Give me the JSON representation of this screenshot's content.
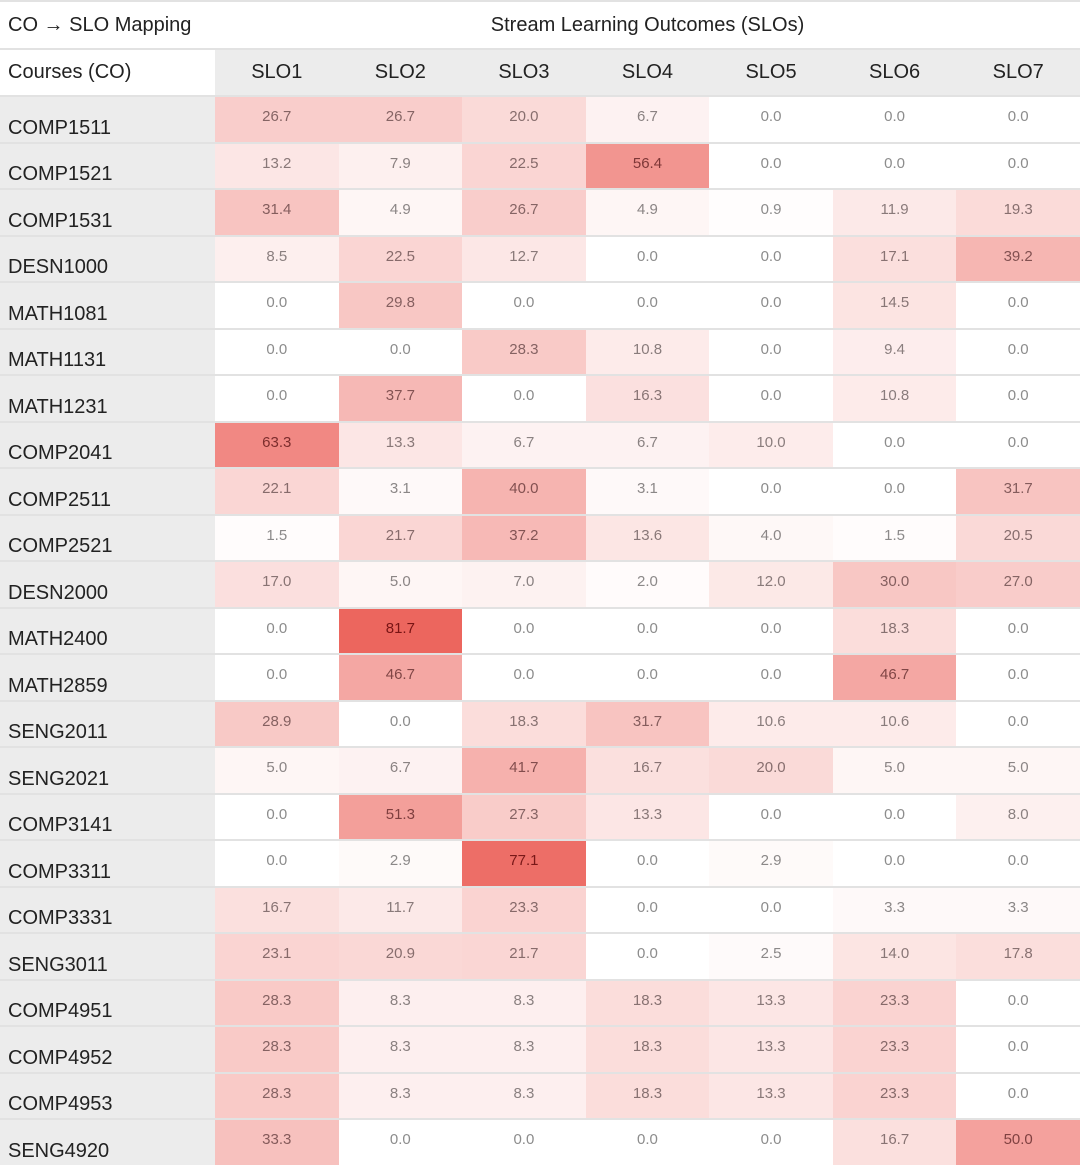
{
  "chart_data": {
    "type": "heatmap",
    "title": "CO → SLO Mapping",
    "column_group_label": "Stream Learning Outcomes (SLOs)",
    "row_header": "Courses (CO)",
    "columns": [
      "SLO1",
      "SLO2",
      "SLO3",
      "SLO4",
      "SLO5",
      "SLO6",
      "SLO7"
    ],
    "color_scale": {
      "low": "#ffffff",
      "high": "#eb5a52"
    },
    "rows": [
      {
        "course": "COMP1511",
        "values": [
          26.7,
          26.7,
          20.0,
          6.7,
          0.0,
          0.0,
          0.0
        ]
      },
      {
        "course": "COMP1521",
        "values": [
          13.2,
          7.9,
          22.5,
          56.4,
          0.0,
          0.0,
          0.0
        ]
      },
      {
        "course": "COMP1531",
        "values": [
          31.4,
          4.9,
          26.7,
          4.9,
          0.9,
          11.9,
          19.3
        ]
      },
      {
        "course": "DESN1000",
        "values": [
          8.5,
          22.5,
          12.7,
          0.0,
          0.0,
          17.1,
          39.2
        ]
      },
      {
        "course": "MATH1081",
        "values": [
          0.0,
          29.8,
          0.0,
          0.0,
          0.0,
          14.5,
          0.0
        ]
      },
      {
        "course": "MATH1131",
        "values": [
          0.0,
          0.0,
          28.3,
          10.8,
          0.0,
          9.4,
          0.0
        ]
      },
      {
        "course": "MATH1231",
        "values": [
          0.0,
          37.7,
          0.0,
          16.3,
          0.0,
          10.8,
          0.0
        ]
      },
      {
        "course": "COMP2041",
        "values": [
          63.3,
          13.3,
          6.7,
          6.7,
          10.0,
          0.0,
          0.0
        ]
      },
      {
        "course": "COMP2511",
        "values": [
          22.1,
          3.1,
          40.0,
          3.1,
          0.0,
          0.0,
          31.7
        ]
      },
      {
        "course": "COMP2521",
        "values": [
          1.5,
          21.7,
          37.2,
          13.6,
          4.0,
          1.5,
          20.5
        ]
      },
      {
        "course": "DESN2000",
        "values": [
          17.0,
          5.0,
          7.0,
          2.0,
          12.0,
          30.0,
          27.0
        ]
      },
      {
        "course": "MATH2400",
        "values": [
          0.0,
          81.7,
          0.0,
          0.0,
          0.0,
          18.3,
          0.0
        ]
      },
      {
        "course": "MATH2859",
        "values": [
          0.0,
          46.7,
          0.0,
          0.0,
          0.0,
          46.7,
          0.0
        ]
      },
      {
        "course": "SENG2011",
        "values": [
          28.9,
          0.0,
          18.3,
          31.7,
          10.6,
          10.6,
          0.0
        ]
      },
      {
        "course": "SENG2021",
        "values": [
          5.0,
          6.7,
          41.7,
          16.7,
          20.0,
          5.0,
          5.0
        ]
      },
      {
        "course": "COMP3141",
        "values": [
          0.0,
          51.3,
          27.3,
          13.3,
          0.0,
          0.0,
          8.0
        ]
      },
      {
        "course": "COMP3311",
        "values": [
          0.0,
          2.9,
          77.1,
          0.0,
          2.9,
          0.0,
          0.0
        ]
      },
      {
        "course": "COMP3331",
        "values": [
          16.7,
          11.7,
          23.3,
          0.0,
          0.0,
          3.3,
          3.3
        ]
      },
      {
        "course": "SENG3011",
        "values": [
          23.1,
          20.9,
          21.7,
          0.0,
          2.5,
          14.0,
          17.8
        ]
      },
      {
        "course": "COMP4951",
        "values": [
          28.3,
          8.3,
          8.3,
          18.3,
          13.3,
          23.3,
          0.0
        ]
      },
      {
        "course": "COMP4952",
        "values": [
          28.3,
          8.3,
          8.3,
          18.3,
          13.3,
          23.3,
          0.0
        ]
      },
      {
        "course": "COMP4953",
        "values": [
          28.3,
          8.3,
          8.3,
          18.3,
          13.3,
          23.3,
          0.0
        ]
      },
      {
        "course": "SENG4920",
        "values": [
          33.3,
          0.0,
          0.0,
          0.0,
          0.0,
          16.7,
          50.0
        ]
      }
    ]
  }
}
